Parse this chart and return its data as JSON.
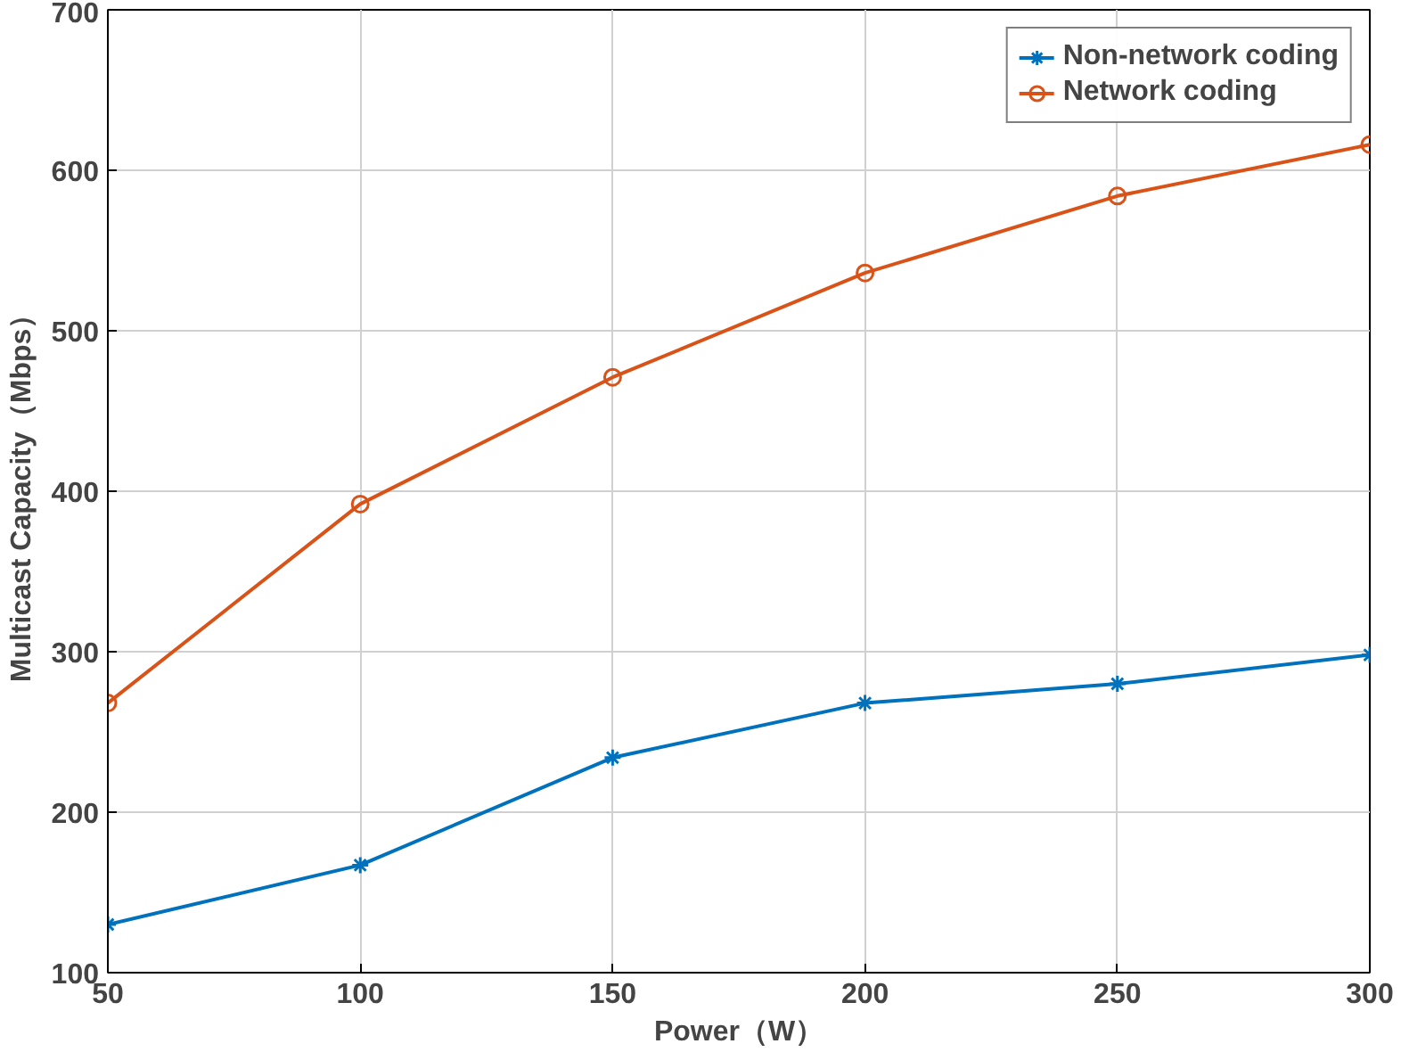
{
  "chart_data": {
    "type": "line",
    "xlabel": "Power（W）",
    "ylabel": "Multicast Capacity（Mbps）",
    "x": [
      50,
      100,
      150,
      200,
      250,
      300
    ],
    "series": [
      {
        "name": "Non-network coding",
        "color": "#0072bd",
        "marker": "cross",
        "values": [
          130,
          167,
          234,
          268,
          280,
          298
        ]
      },
      {
        "name": "Network coding",
        "color": "#d95319",
        "marker": "circle",
        "values": [
          268,
          392,
          471,
          536,
          584,
          616
        ]
      }
    ],
    "xlim": [
      50,
      300
    ],
    "xticks": [
      50,
      100,
      150,
      200,
      250,
      300
    ],
    "ylim": [
      100,
      700
    ],
    "yticks": [
      100,
      200,
      300,
      400,
      500,
      600,
      700
    ],
    "grid": true,
    "legend": "top right",
    "line_style": "solid"
  }
}
